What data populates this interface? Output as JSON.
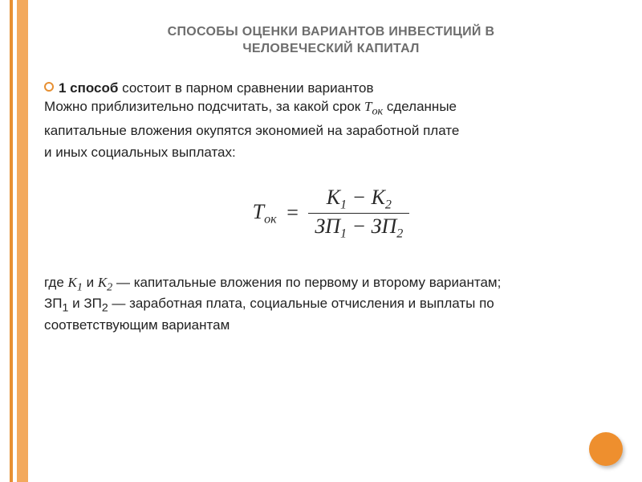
{
  "colors": {
    "stripe_outer": "#e79033",
    "stripe_inner": "#f3a95c",
    "title_color": "#6d6d6d",
    "body_color": "#222222",
    "bullet_ring": "#e79033",
    "corner_circle": "#ee8f2e",
    "background": "#ffffff",
    "formula_color": "#2a2a2a"
  },
  "typography": {
    "title_fontsize": 16,
    "body_fontsize": 17,
    "formula_fontsize": 26,
    "title_weight": "bold",
    "body_family": "Arial",
    "formula_family": "Times New Roman"
  },
  "title_line1": "СПОСОБЫ ОЦЕНКИ ВАРИАНТОВ ИНВЕСТИЦИЙ В",
  "title_line2": "ЧЕЛОВЕЧЕСКИЙ КАПИТАЛ",
  "bullet": {
    "strong": "1 способ",
    "rest": " состоит в парном сравнении вариантов"
  },
  "para1_a": "Можно приблизительно подсчитать, за какой срок ",
  "para1_tok": "Т",
  "para1_tok_sub": "ок",
  "para1_b": " сделанные",
  "para2": "капитальные вложения окупятся экономией на заработной плате",
  "para3": "и иных социальных выплатах:",
  "formula": {
    "lhs_sym": "T",
    "lhs_sub": "ок",
    "numerator": "К₁ − К₂",
    "num_a": "К",
    "num_a_sub": "1",
    "num_minus": " − ",
    "num_b": "К",
    "num_b_sub": "2",
    "den_a": "ЗП",
    "den_a_sub": "1",
    "den_minus": " − ",
    "den_b": "ЗП",
    "den_b_sub": "2"
  },
  "legend": {
    "l1_a": "где ",
    "l1_k1": "К",
    "l1_k1_sub": "1",
    "l1_and1": " и ",
    "l1_k2": "К",
    "l1_k2_sub": "2",
    "l1_b": " — капитальные вложения по первому и второму вариантам;",
    "l2_a": "ЗП",
    "l2_a_sub": "1",
    "l2_and": " и ЗП",
    "l2_b_sub": "2",
    "l2_rest": " — заработная плата, социальные отчисления и выплаты по",
    "l3": "соответствующим вариантам"
  }
}
